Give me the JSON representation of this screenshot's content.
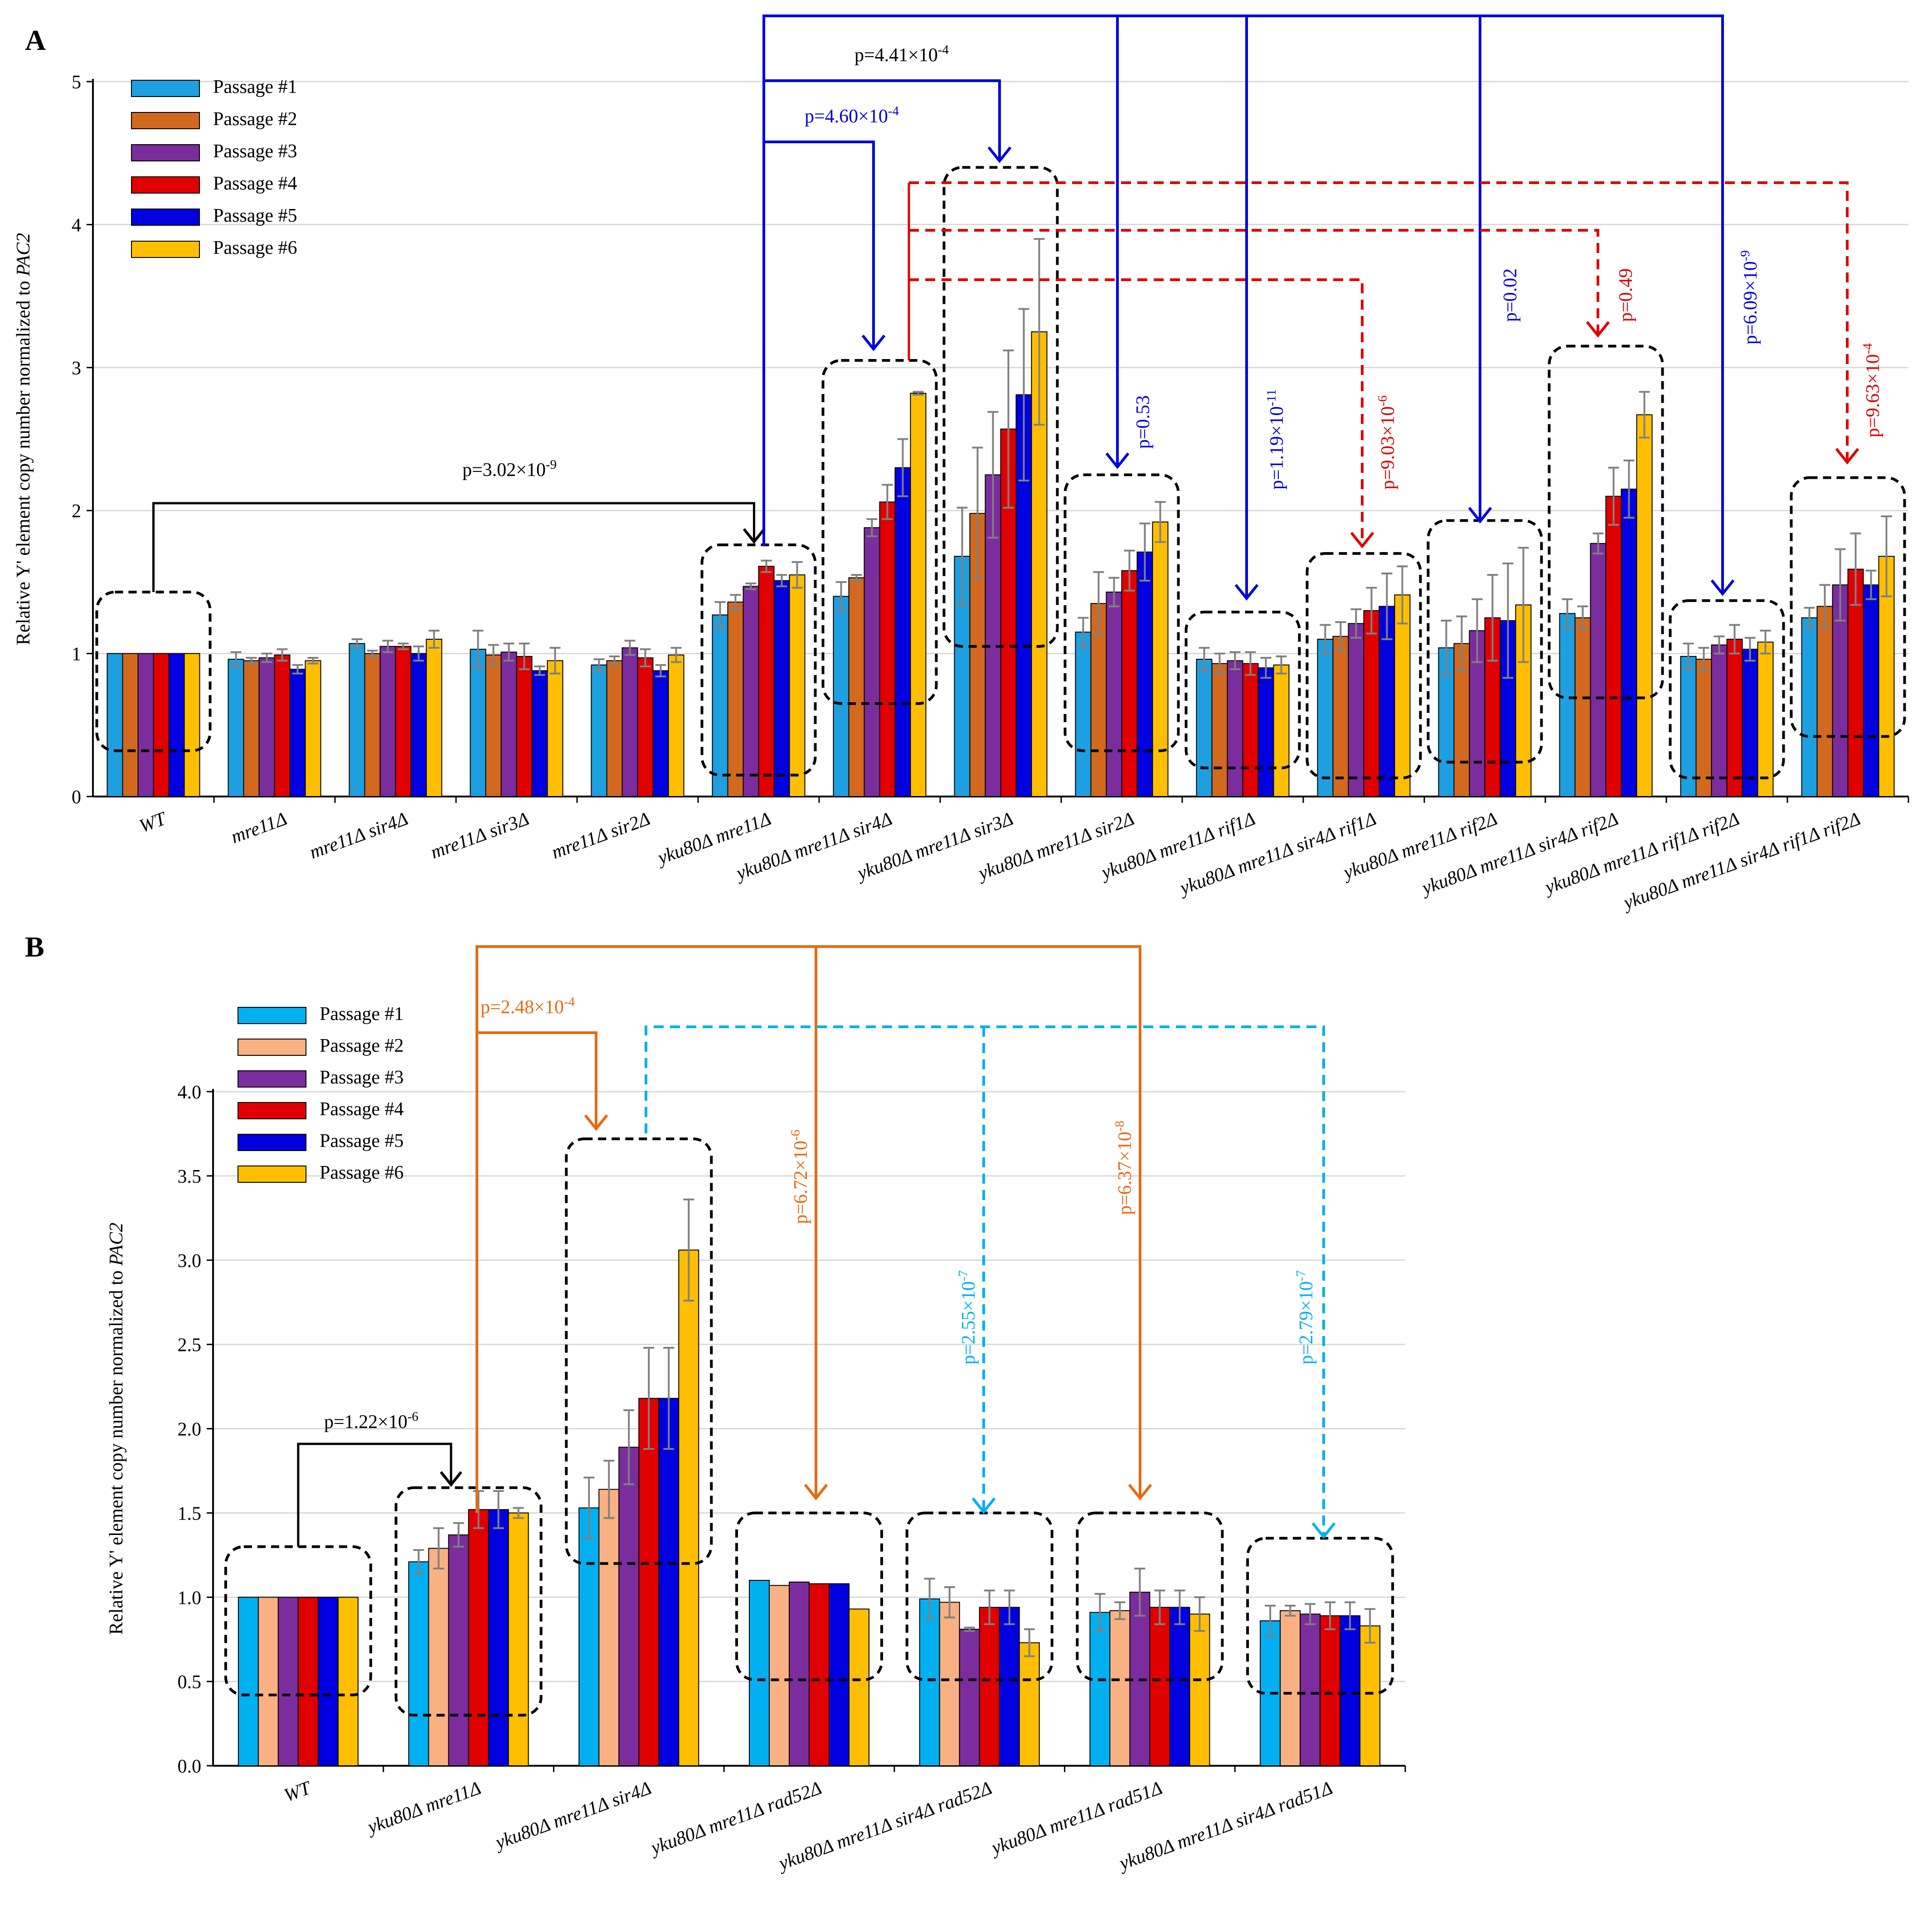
{
  "chart_data": [
    {
      "panel_label": "A",
      "type": "bar",
      "ylabel": "Relative Y' element copy number normalized to PAC2",
      "ylabel_prefix": "Relative Y' element copy number normalized to ",
      "ylabel_italic": "PAC2",
      "ylim": [
        0,
        5
      ],
      "yticks": [
        "0",
        "1",
        "2",
        "3",
        "4",
        "5"
      ],
      "grid": true,
      "legend_position": "top-left",
      "categories": [
        "WT",
        "mre11Δ",
        "mre11Δ sir4Δ",
        "mre11Δ sir3Δ",
        "mre11Δ sir2Δ",
        "yku80Δ mre11Δ",
        "yku80Δ mre11Δ sir4Δ",
        "yku80Δ mre11Δ sir3Δ",
        "yku80Δ mre11Δ sir2Δ",
        "yku80Δ mre11Δ rif1Δ",
        "yku80Δ mre11Δ sir4Δ rif1Δ",
        "yku80Δ mre11Δ rif2Δ",
        "yku80Δ mre11Δ sir4Δ rif2Δ",
        "yku80Δ mre11Δ rif1Δ rif2Δ",
        "yku80Δ mre11Δ sir4Δ rif1Δ rif2Δ"
      ],
      "series": [
        {
          "name": "Passage #1",
          "color": "#1E9FE0",
          "values": [
            1.0,
            0.96,
            1.07,
            1.03,
            0.92,
            1.27,
            1.4,
            1.68,
            1.15,
            0.96,
            1.1,
            1.04,
            1.28,
            0.98,
            1.25
          ],
          "errors": [
            0,
            0.05,
            0.03,
            0.13,
            0.04,
            0.09,
            0.1,
            0.34,
            0.1,
            0.08,
            0.1,
            0.19,
            0.1,
            0.09,
            0.07
          ]
        },
        {
          "name": "Passage #2",
          "color": "#D2691E",
          "values": [
            1.0,
            0.95,
            1.0,
            0.99,
            0.95,
            1.36,
            1.53,
            1.98,
            1.35,
            0.93,
            1.12,
            1.07,
            1.25,
            0.96,
            1.33
          ],
          "errors": [
            0,
            0.02,
            0.02,
            0.07,
            0.03,
            0.05,
            0.02,
            0.46,
            0.22,
            0.07,
            0.1,
            0.19,
            0.08,
            0.08,
            0.15
          ]
        },
        {
          "name": "Passage #3",
          "color": "#7B2D9E",
          "values": [
            1.0,
            0.97,
            1.05,
            1.01,
            1.04,
            1.47,
            1.88,
            2.25,
            1.43,
            0.95,
            1.21,
            1.16,
            1.77,
            1.06,
            1.48
          ],
          "errors": [
            0,
            0.03,
            0.04,
            0.06,
            0.05,
            0.02,
            0.06,
            0.44,
            0.1,
            0.06,
            0.1,
            0.22,
            0.07,
            0.06,
            0.25
          ]
        },
        {
          "name": "Passage #4",
          "color": "#E00000",
          "values": [
            1.0,
            0.99,
            1.05,
            0.98,
            0.97,
            1.61,
            2.06,
            2.57,
            1.58,
            0.93,
            1.3,
            1.25,
            2.1,
            1.1,
            1.59
          ],
          "errors": [
            0,
            0.04,
            0.02,
            0.09,
            0.06,
            0.04,
            0.12,
            0.55,
            0.14,
            0.08,
            0.16,
            0.3,
            0.2,
            0.1,
            0.25
          ]
        },
        {
          "name": "Passage #5",
          "color": "#0000E0",
          "values": [
            1.0,
            0.89,
            1.0,
            0.88,
            0.88,
            1.51,
            2.3,
            2.81,
            1.71,
            0.9,
            1.33,
            1.23,
            2.15,
            1.03,
            1.48
          ],
          "errors": [
            0,
            0.03,
            0.05,
            0.03,
            0.04,
            0.04,
            0.2,
            0.6,
            0.2,
            0.07,
            0.23,
            0.4,
            0.2,
            0.08,
            0.1
          ]
        },
        {
          "name": "Passage #6",
          "color": "#FFBF00",
          "values": [
            1.0,
            0.95,
            1.1,
            0.95,
            0.99,
            1.55,
            2.82,
            3.25,
            1.92,
            0.92,
            1.41,
            1.34,
            2.67,
            1.08,
            1.68
          ],
          "errors": [
            0,
            0.02,
            0.06,
            0.09,
            0.05,
            0.09,
            0.01,
            0.65,
            0.14,
            0.06,
            0.2,
            0.4,
            0.16,
            0.08,
            0.28
          ]
        }
      ],
      "annotations": [
        {
          "label": "p=",
          "base": "3.02×10",
          "exp": "-9",
          "color": "#000000"
        },
        {
          "label": "p=",
          "base": "4.41×10",
          "exp": "-4",
          "color": "#000000"
        },
        {
          "label": "p=",
          "base": "4.60×10",
          "exp": "-4",
          "color": "#0000E0"
        },
        {
          "label": "p=",
          "base": "0.53",
          "exp": "",
          "color": "#0000E0"
        },
        {
          "label": "p=",
          "base": "1.19×10",
          "exp": "-11",
          "color": "#0000E0"
        },
        {
          "label": "p=",
          "base": "9.03×10",
          "exp": "-6",
          "color": "#E00000"
        },
        {
          "label": "p=",
          "base": "0.02",
          "exp": "",
          "color": "#0000E0"
        },
        {
          "label": "p=",
          "base": "0.49",
          "exp": "",
          "color": "#E00000"
        },
        {
          "label": "p=",
          "base": "6.09×10",
          "exp": "-9",
          "color": "#0000E0"
        },
        {
          "label": "p=",
          "base": "9.63×10",
          "exp": "-4",
          "color": "#E00000"
        }
      ]
    },
    {
      "panel_label": "B",
      "type": "bar",
      "ylabel": "Relative Y' element copy number normalized to PAC2",
      "ylabel_prefix": "Relative Y' element copy number normalized to ",
      "ylabel_italic": "PAC2",
      "ylim": [
        0,
        4
      ],
      "yticks": [
        "0.0",
        "0.5",
        "1.0",
        "1.5",
        "2.0",
        "2.5",
        "3.0",
        "3.5",
        "4.0"
      ],
      "grid": true,
      "legend_position": "top-left",
      "categories": [
        "WT",
        "yku80Δ mre11Δ",
        "yku80Δ mre11Δ sir4Δ",
        "yku80Δ mre11Δ rad52Δ",
        "yku80Δ mre11Δ sir4Δ rad52Δ",
        "yku80Δ mre11Δ rad51Δ",
        "yku80Δ mre11Δ sir4Δ rad51Δ"
      ],
      "series": [
        {
          "name": "Passage #1",
          "color": "#00B0F0",
          "values": [
            1.0,
            1.21,
            1.53,
            1.1,
            0.99,
            0.91,
            0.86
          ],
          "errors": [
            0,
            0.07,
            0.18,
            0,
            0.12,
            0.11,
            0.09
          ]
        },
        {
          "name": "Passage #2",
          "color": "#F9B183",
          "values": [
            1.0,
            1.29,
            1.64,
            1.07,
            0.97,
            0.92,
            0.92
          ],
          "errors": [
            0,
            0.12,
            0.17,
            0,
            0.09,
            0.05,
            0.03
          ]
        },
        {
          "name": "Passage #3",
          "color": "#7B2D9E",
          "values": [
            1.0,
            1.37,
            1.89,
            1.09,
            0.81,
            1.03,
            0.9
          ],
          "errors": [
            0,
            0.07,
            0.22,
            0,
            0.01,
            0.14,
            0.06
          ]
        },
        {
          "name": "Passage #4",
          "color": "#E00000",
          "values": [
            1.0,
            1.52,
            2.18,
            1.08,
            0.94,
            0.94,
            0.89
          ],
          "errors": [
            0,
            0.11,
            0.3,
            0,
            0.1,
            0.1,
            0.08
          ]
        },
        {
          "name": "Passage #5",
          "color": "#0000E0",
          "values": [
            1.0,
            1.52,
            2.18,
            1.08,
            0.94,
            0.94,
            0.89
          ],
          "errors": [
            0,
            0.11,
            0.3,
            0,
            0.1,
            0.1,
            0.08
          ]
        },
        {
          "name": "Passage #6",
          "color": "#FFBF00",
          "values": [
            1.0,
            1.5,
            3.06,
            0.93,
            0.73,
            0.9,
            0.83
          ],
          "errors": [
            0,
            0.03,
            0.3,
            0,
            0.08,
            0.1,
            0.1
          ]
        }
      ],
      "annotations": [
        {
          "label": "p=",
          "base": "1.22×10",
          "exp": "-6",
          "color": "#000000"
        },
        {
          "label": "p=",
          "base": "2.48×10",
          "exp": "-4",
          "color": "#E86A10"
        },
        {
          "label": "p=",
          "base": "6.72×10",
          "exp": "-6",
          "color": "#E86A10"
        },
        {
          "label": "p=",
          "base": "2.55×10",
          "exp": "-7",
          "color": "#00B0F0"
        },
        {
          "label": "p=",
          "base": "6.37×10",
          "exp": "-8",
          "color": "#E86A10"
        },
        {
          "label": "p=",
          "base": "2.79×10",
          "exp": "-7",
          "color": "#00B0F0"
        }
      ]
    }
  ]
}
